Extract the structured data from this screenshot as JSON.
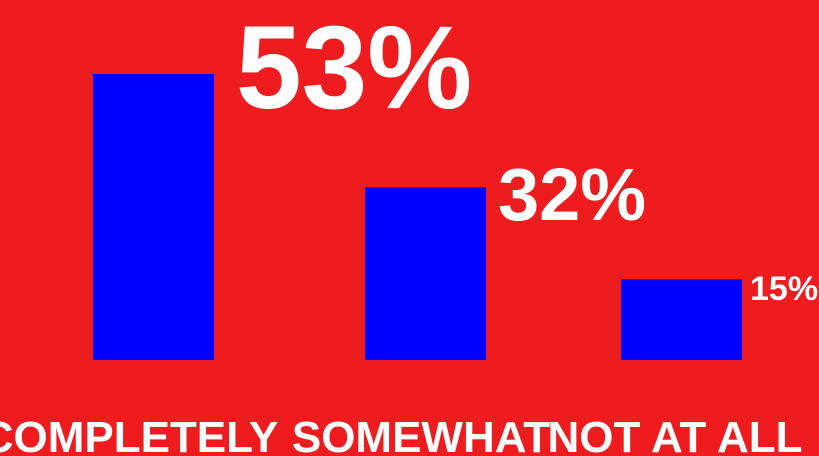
{
  "colors": {
    "background": "#ee1c1f",
    "bar": "#0000ff",
    "text": "#ffffff"
  },
  "chart_data": {
    "type": "bar",
    "categories": [
      "COMPLETELY",
      "SOMEWHAT",
      "NOT AT ALL"
    ],
    "values": [
      53,
      32,
      15
    ],
    "value_labels": [
      "53%",
      "32%",
      "15%"
    ],
    "title": "",
    "xlabel": "",
    "ylabel": "",
    "ylim": [
      0,
      53
    ],
    "grid": false,
    "legend": "none"
  }
}
